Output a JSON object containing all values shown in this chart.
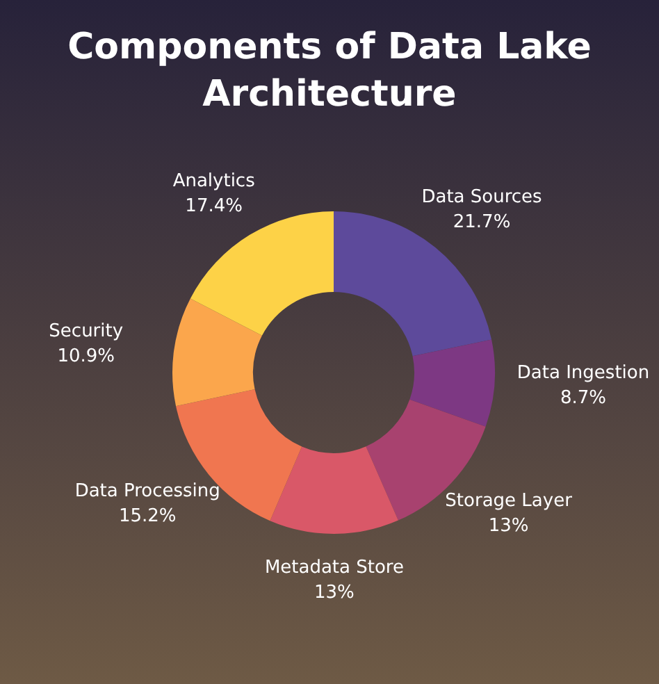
{
  "chart_data": {
    "type": "donut",
    "title": "Components of Data Lake Architecture",
    "categories": [
      "Data Sources",
      "Data Ingestion",
      "Storage Layer",
      "Metadata Store",
      "Data Processing",
      "Security",
      "Analytics"
    ],
    "values": [
      21.7,
      8.7,
      13,
      13,
      15.2,
      10.9,
      17.4
    ],
    "colors": [
      "#5d4a9b",
      "#7d3883",
      "#a8426f",
      "#d95868",
      "#f07650",
      "#fba64c",
      "#fdd247"
    ],
    "value_labels": [
      "21.7%",
      "8.7%",
      "13%",
      "13%",
      "15.2%",
      "10.9%",
      "17.4%"
    ]
  }
}
